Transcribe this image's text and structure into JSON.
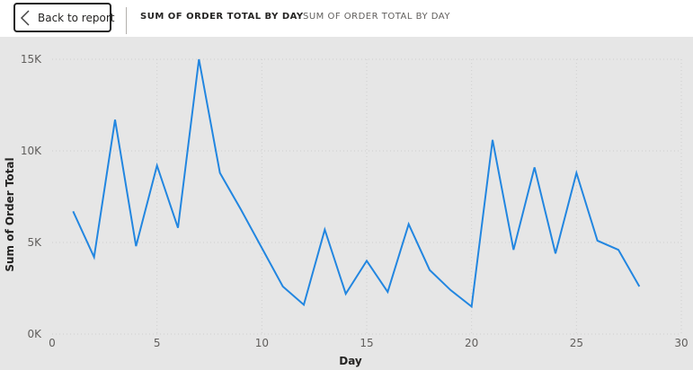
{
  "header": {
    "back_label": "Back to report",
    "title_main": "SUM OF ORDER TOTAL BY DAY",
    "title_sub": "SUM OF ORDER TOTAL BY DAY",
    "back_icon": "chevron-left-icon"
  },
  "colors": {
    "line": "#2286e0",
    "plot_bg": "#e6e6e6",
    "grid": "#cfcfcf"
  },
  "chart_data": {
    "type": "line",
    "title": "",
    "xlabel": "Day",
    "ylabel": "Sum of Order Total",
    "xlim": [
      0,
      30
    ],
    "ylim": [
      0,
      15000
    ],
    "x_ticks": [
      0,
      5,
      10,
      15,
      20,
      25,
      30
    ],
    "x_tick_labels": [
      "0",
      "5",
      "10",
      "15",
      "20",
      "25",
      "30"
    ],
    "y_ticks": [
      0,
      5000,
      10000,
      15000
    ],
    "y_tick_labels": [
      "0K",
      "5K",
      "10K",
      "15K"
    ],
    "grid": true,
    "legend": "none",
    "series": [
      {
        "x": [
          1,
          2,
          3,
          4,
          5,
          6,
          7,
          8,
          9,
          10,
          11,
          12,
          13,
          14,
          15,
          16,
          17,
          18,
          19,
          20,
          21,
          22,
          23,
          24,
          25,
          26,
          27,
          28
        ],
        "values": [
          6700,
          4200,
          11700,
          4800,
          9200,
          5800,
          15000,
          8800,
          6800,
          4700,
          2600,
          1600,
          5700,
          2200,
          4000,
          2300,
          6000,
          3500,
          2400,
          1500,
          10600,
          4600,
          9100,
          4400,
          8800,
          5100,
          4600,
          2600
        ]
      }
    ]
  }
}
